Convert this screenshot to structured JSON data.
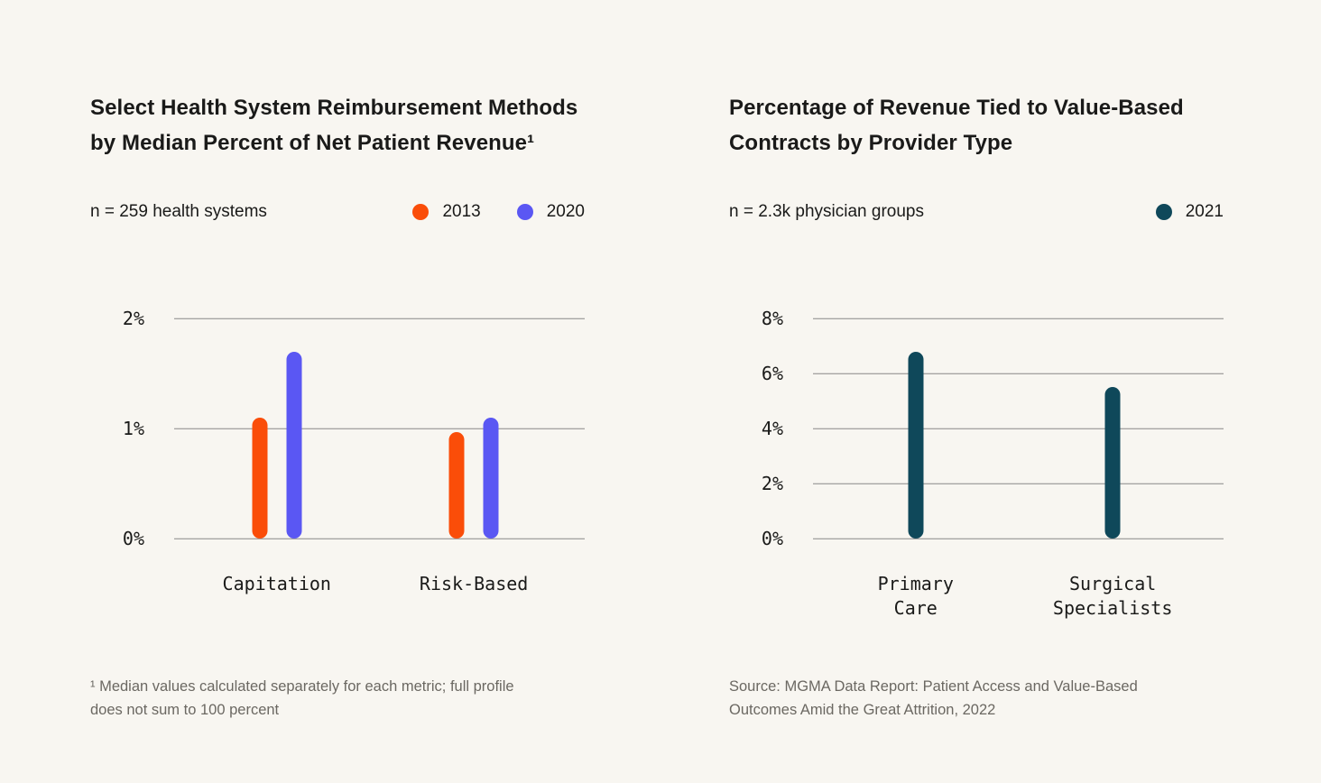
{
  "page": {
    "background_color": "#F8F6F1",
    "gridline_color": "#878787",
    "title_color": "#1A1A19",
    "footnote_color": "#6B6862"
  },
  "chart_data": [
    {
      "type": "bar",
      "title": "Select Health System Reimbursement Methods\nby Median Percent of Net Patient Revenue¹",
      "sample_label": "n = 259 health systems",
      "categories": [
        "Capitation",
        "Risk-Based"
      ],
      "series": [
        {
          "name": "2013",
          "color": "#FA4D09",
          "values": [
            1.1,
            0.97
          ]
        },
        {
          "name": "2020",
          "color": "#5A57F3",
          "values": [
            1.7,
            1.1
          ]
        }
      ],
      "ylim": [
        0,
        2
      ],
      "yticks": [
        {
          "value": 0,
          "label": "0%"
        },
        {
          "value": 1,
          "label": "1%"
        },
        {
          "value": 2,
          "label": "2%"
        }
      ],
      "category_centers_pct": [
        25,
        73
      ],
      "legend_position": "top-right",
      "grid": true,
      "footnote": "¹ Median values calculated separately for each metric; full profile\ndoes not sum to 100 percent"
    },
    {
      "type": "bar",
      "title": "Percentage of Revenue Tied to Value-Based\nContracts by Provider Type",
      "sample_label": "n = 2.3k physician groups",
      "categories": [
        "Primary\nCare",
        "Surgical\nSpecialists"
      ],
      "series": [
        {
          "name": "2021",
          "color": "#0F485A",
          "values": [
            6.8,
            5.5
          ]
        }
      ],
      "ylim": [
        0,
        8
      ],
      "yticks": [
        {
          "value": 0,
          "label": "0%"
        },
        {
          "value": 2,
          "label": "2%"
        },
        {
          "value": 4,
          "label": "4%"
        },
        {
          "value": 6,
          "label": "6%"
        },
        {
          "value": 8,
          "label": "8%"
        }
      ],
      "category_centers_pct": [
        25,
        73
      ],
      "legend_position": "top-right",
      "grid": true,
      "footnote": "Source: MGMA Data Report: Patient Access and Value-Based\nOutcomes Amid the Great Attrition, 2022"
    }
  ]
}
